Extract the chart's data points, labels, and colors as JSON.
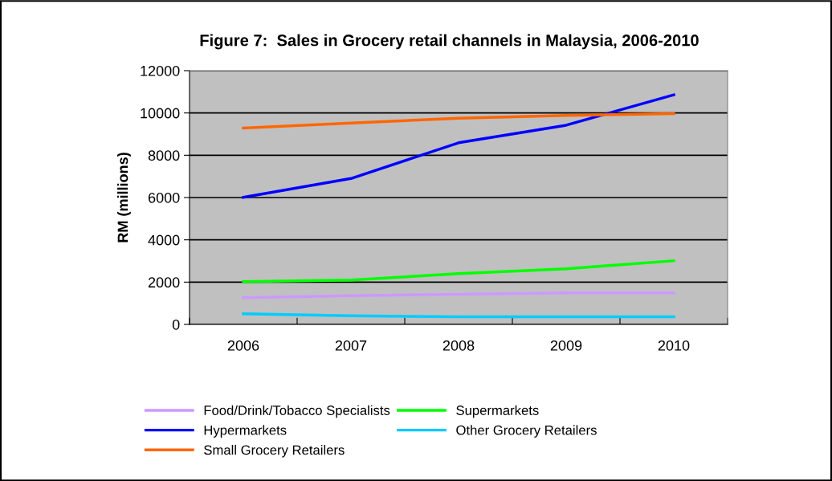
{
  "chart_data": {
    "type": "line",
    "title": "Figure 7:  Sales in Grocery retail channels in Malaysia, 2006-2010",
    "ylabel": "RM (millions)",
    "categories": [
      "2006",
      "2007",
      "2008",
      "2009",
      "2010"
    ],
    "series": [
      {
        "name": "Food/Drink/Tobacco Specialists",
        "color": "#cc99ff",
        "values": [
          1260,
          1360,
          1420,
          1490,
          1490
        ]
      },
      {
        "name": "Hypermarkets",
        "color": "#0000ff",
        "values": [
          6010,
          6900,
          8590,
          9420,
          10860
        ]
      },
      {
        "name": "Small Grocery Retailers",
        "color": "#ff6600",
        "values": [
          9290,
          9520,
          9750,
          9880,
          9970
        ]
      },
      {
        "name": "Supermarkets",
        "color": "#00ff00",
        "values": [
          2020,
          2100,
          2400,
          2630,
          3010
        ]
      },
      {
        "name": "Other Grocery Retailers",
        "color": "#00ccff",
        "values": [
          500,
          410,
          360,
          360,
          360
        ]
      }
    ],
    "ylim": [
      0,
      12000
    ],
    "yticks": [
      0,
      2000,
      4000,
      6000,
      8000,
      10000,
      12000
    ],
    "grid": "y",
    "legend": "bottom",
    "marker": "none",
    "line_style": "solid"
  }
}
